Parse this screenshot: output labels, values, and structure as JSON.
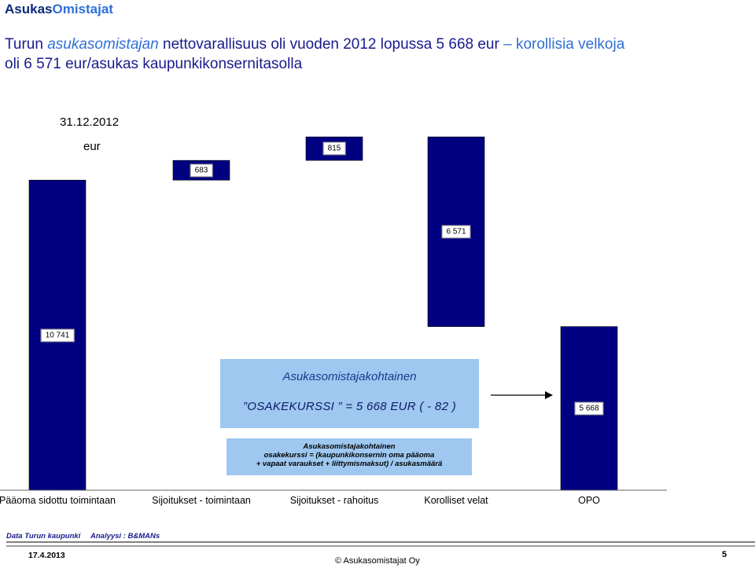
{
  "header": {
    "brand_part1": "Asukas",
    "brand_part2": "Omistajat"
  },
  "title": {
    "p1": "Turun ",
    "p2": "asukasomistajan",
    "p3": " nettovarallisuus oli vuoden 2012 lopussa 5 668 eur ",
    "p4": "– korollisia velkoja",
    "p5": "oli 6 571  eur/asukas",
    "p6": " kaupunkikonsernitasolla"
  },
  "chart_data": {
    "type": "bar",
    "subtype": "waterfall",
    "date_label": "31.12.2012",
    "unit_label": "eur",
    "categories": [
      "Pääoma sidottu toimintaan",
      "Sijoitukset - toimintaan",
      "Sijoitukset - rahoitus",
      "Korolliset velat",
      "OPO"
    ],
    "values": [
      10741,
      683,
      815,
      -6571,
      5668
    ],
    "value_labels": [
      "10 741",
      "683",
      "815",
      "6 571",
      "5 668"
    ],
    "bar_color": "#000080",
    "grid": false,
    "legend": "none"
  },
  "box1": {
    "title": "Asukasomistajakohtainen",
    "formula": "”OSAKEKURSSI ” = 5 668  EUR ( - 82 )",
    "color": "#9ec8f0"
  },
  "box2": {
    "line1": "Asukasomistajakohtainen",
    "line2": "osakekurssi = (kaupunkikonsernin oma pääoma",
    "line3": "+ vapaat varaukset + liittymismaksut) / asukasmäärä"
  },
  "footer": {
    "data": "Data Turun kaupunki",
    "analyysi": "Analyysi : B&MANs",
    "date": "17.4.2013",
    "copyright": "© Asukasomistajat Oy",
    "page": "5"
  }
}
